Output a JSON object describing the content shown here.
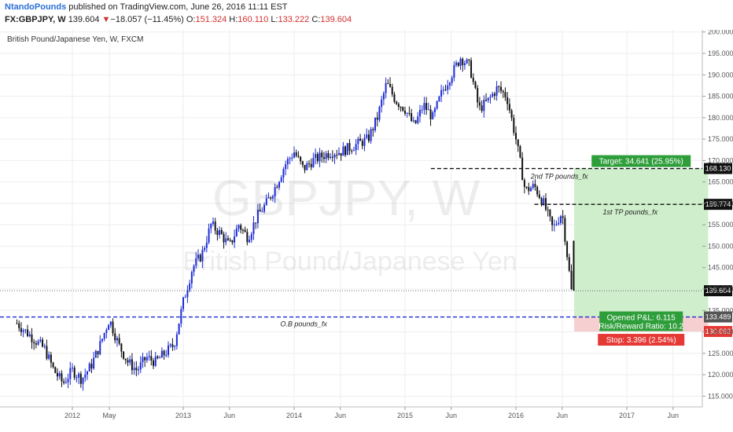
{
  "header": {
    "author": "NtandoPounds",
    "published": "published on TradingView.com, June 26, 2016 11:11 EST",
    "symbol": "FX:GBPJPY, W",
    "last": "139.604",
    "change_arrow": "▼",
    "change": "−18.057 (−11.45%)",
    "o_label": "O:",
    "o_value": "151.324",
    "h_label": "H:",
    "h_value": "160.110",
    "l_label": "L:",
    "l_value": "133.222",
    "c_label": "C:",
    "c_value": "139.604"
  },
  "chart_data": {
    "type": "candlestick",
    "title": "British Pound/Japanese Yen, W, FXCM",
    "watermark_symbol": "GBPJPY, W",
    "watermark_name": "British Pound/Japanese Yen",
    "ylim": [
      112.5,
      200.5
    ],
    "y_ticks": [
      "115.000",
      "120.000",
      "125.000",
      "130.000",
      "135.000",
      "140.000",
      "145.000",
      "150.000",
      "155.000",
      "160.000",
      "165.000",
      "170.000",
      "175.000",
      "180.000",
      "185.000",
      "190.000",
      "195.000",
      "200.000"
    ],
    "x_ticks": [
      {
        "label": "2012",
        "month": 0
      },
      {
        "label": "May",
        "month": 4
      },
      {
        "label": "2013",
        "month": 12
      },
      {
        "label": "Jun",
        "month": 17
      },
      {
        "label": "2014",
        "month": 24
      },
      {
        "label": "Jun",
        "month": 29
      },
      {
        "label": "2015",
        "month": 36
      },
      {
        "label": "Jun",
        "month": 41
      },
      {
        "label": "2016",
        "month": 48
      },
      {
        "label": "Jun",
        "month": 53
      },
      {
        "label": "2017",
        "month": 60
      },
      {
        "label": "Jun",
        "month": 65
      }
    ],
    "x_start_month": -6,
    "x_end_month": 70,
    "price_path": [
      [
        -6,
        132
      ],
      [
        -5,
        130
      ],
      [
        -3,
        126
      ],
      [
        -2,
        121
      ],
      [
        -1,
        118
      ],
      [
        0,
        121
      ],
      [
        1,
        119
      ],
      [
        2,
        122
      ],
      [
        3,
        127
      ],
      [
        4,
        133
      ],
      [
        5,
        127
      ],
      [
        6,
        123
      ],
      [
        7,
        121
      ],
      [
        8,
        124
      ],
      [
        9,
        123
      ],
      [
        10,
        125
      ],
      [
        11,
        127
      ],
      [
        12,
        137
      ],
      [
        13,
        145
      ],
      [
        14,
        148
      ],
      [
        15,
        155
      ],
      [
        16,
        153
      ],
      [
        17,
        150
      ],
      [
        18,
        155
      ],
      [
        19,
        152
      ],
      [
        20,
        157
      ],
      [
        21,
        160
      ],
      [
        22,
        164
      ],
      [
        23,
        169
      ],
      [
        24,
        172
      ],
      [
        25,
        168
      ],
      [
        26,
        170
      ],
      [
        27,
        171
      ],
      [
        28,
        172
      ],
      [
        29,
        172
      ],
      [
        30,
        173
      ],
      [
        31,
        174
      ],
      [
        32,
        175
      ],
      [
        33,
        180
      ],
      [
        34,
        188
      ],
      [
        35,
        184
      ],
      [
        36,
        182
      ],
      [
        37,
        178
      ],
      [
        38,
        183
      ],
      [
        39,
        180
      ],
      [
        40,
        186
      ],
      [
        41,
        190
      ],
      [
        42,
        194
      ],
      [
        43,
        192
      ],
      [
        44,
        182
      ],
      [
        45,
        184
      ],
      [
        46,
        187
      ],
      [
        47,
        185
      ],
      [
        48,
        175
      ],
      [
        49,
        163
      ],
      [
        50,
        164
      ],
      [
        51,
        160
      ],
      [
        52,
        154
      ],
      [
        53,
        158
      ],
      [
        54,
        139.6
      ]
    ],
    "levels": [
      {
        "name": "tp2",
        "price": 168.13,
        "start_month": 38.8,
        "style": "black-dashed",
        "label": "2nd TP  pounds_fx",
        "badge": "168.130"
      },
      {
        "name": "tp1",
        "price": 159.774,
        "start_month": 50,
        "style": "black-dashed",
        "label": "1st TP  pounds_fx",
        "badge": "159.774"
      },
      {
        "name": "ob",
        "price": 133.489,
        "start_month": -6,
        "style": "blue-dashed",
        "label": "O.B            pounds_fx",
        "badge": "133.489"
      },
      {
        "name": "last",
        "price": 139.604,
        "start_month": -6,
        "style": "dotted",
        "label": "",
        "badge": "139.604"
      }
    ],
    "position": {
      "entry": 133.489,
      "target": 168.13,
      "stop": 130.093,
      "stop_badge": "130.093",
      "start_month": 54.3,
      "end_month": 68.8,
      "target_label": "Target: 34.641 (25.95%)",
      "pnl_label": "Opened P&L: 6.115",
      "rr_label": "Risk/Reward Ratio: 10.2",
      "stop_label": "Stop: 3.396 (2.54%)"
    }
  },
  "colors": {
    "up": "#1c2bd6",
    "down": "#111111",
    "target_zone": "#cfeecb",
    "stop_zone": "#f6cfd0",
    "target_badge": "#2e9e3a",
    "stop_badge": "#e53935",
    "ob_line": "#1c2bd6"
  }
}
